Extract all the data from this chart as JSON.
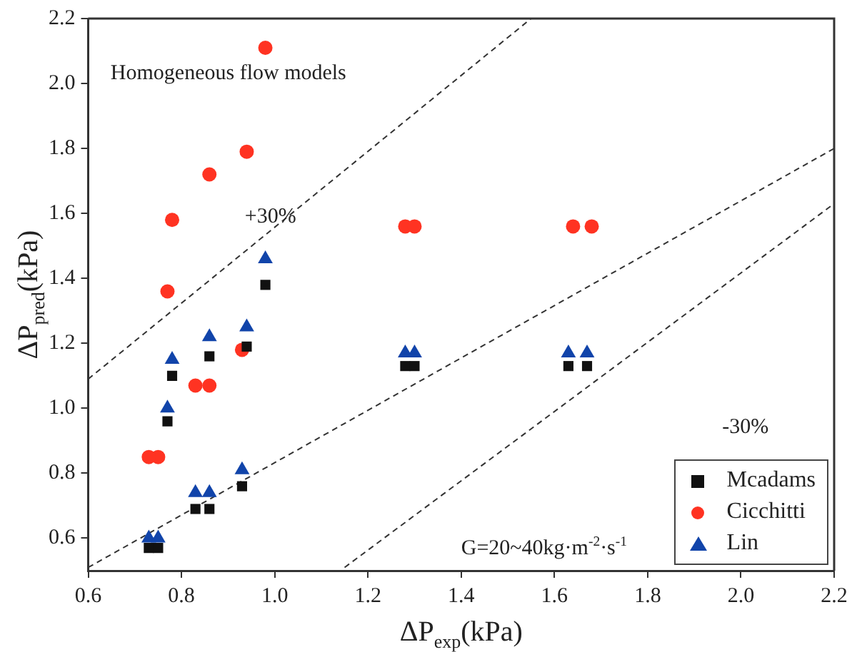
{
  "chart_data": {
    "type": "scatter",
    "xlabel": "ΔP$_{exp}$(kPa)",
    "ylabel": "ΔP$_{pred}$(kPa)",
    "xlim": [
      0.6,
      2.2
    ],
    "ylim": [
      0.5,
      2.2
    ],
    "xticks": [
      0.6,
      0.8,
      {
        "value": 1,
        "label": "1.0"
      },
      1.2,
      1.4,
      1.6,
      1.8,
      {
        "value": 2,
        "label": "2.0"
      },
      2.2
    ],
    "yticks": [
      0.6,
      0.8,
      {
        "value": 1,
        "label": "1.0"
      },
      1.2,
      1.4,
      1.6,
      1.8,
      {
        "value": 2,
        "label": "2.0"
      },
      2.2
    ],
    "grid": false,
    "legend": "bottom right",
    "annotations": [
      "Homogeneous flow models",
      "+30%",
      "-30%",
      "G=20~40kg·m$^{-2}$·s$^{-1}$"
    ],
    "series": [
      {
        "type": "line",
        "color": "#333333",
        "line_style": "dashed",
        "marker": "none",
        "x": [
          0.6,
          1.55
        ],
        "values": [
          1.09,
          2.2
        ]
      },
      {
        "type": "line",
        "color": "#333333",
        "line_style": "dashed",
        "marker": "none",
        "x": [
          0.6,
          2.2
        ],
        "values": [
          0.51,
          1.8
        ]
      },
      {
        "type": "line",
        "color": "#333333",
        "line_style": "dashed",
        "marker": "none",
        "x": [
          1.15,
          2.2
        ],
        "values": [
          0.51,
          1.63
        ]
      },
      {
        "name": "Mcadams",
        "color": "#111111",
        "marker": "square",
        "x": [
          0.98,
          0.94,
          0.86,
          0.78,
          0.77,
          0.93,
          0.83,
          0.86,
          0.73,
          0.75,
          1.28,
          1.3,
          1.63,
          1.67
        ],
        "values": [
          1.38,
          1.19,
          1.16,
          1.1,
          0.96,
          0.76,
          0.69,
          0.69,
          0.57,
          0.57,
          1.13,
          1.13,
          1.13,
          1.13
        ]
      },
      {
        "name": "Cicchitti",
        "color": "#ff3322",
        "marker": "circle",
        "x": [
          0.98,
          0.94,
          0.86,
          0.78,
          0.77,
          1.28,
          1.3,
          1.64,
          1.68,
          0.75,
          0.73,
          0.83,
          0.86,
          0.93
        ],
        "values": [
          2.11,
          1.79,
          1.72,
          1.58,
          1.36,
          1.56,
          1.56,
          1.56,
          1.56,
          0.85,
          0.85,
          1.07,
          1.07,
          1.18
        ]
      },
      {
        "name": "Lin",
        "color": "#1144aa",
        "marker": "triangle",
        "x": [
          0.98,
          0.94,
          0.86,
          0.78,
          0.77,
          0.93,
          0.83,
          0.86,
          0.73,
          0.75,
          1.28,
          1.3,
          1.63,
          1.67
        ],
        "values": [
          1.46,
          1.25,
          1.22,
          1.15,
          1.0,
          0.81,
          0.74,
          0.74,
          0.6,
          0.6,
          1.17,
          1.17,
          1.17,
          1.17
        ]
      }
    ]
  }
}
